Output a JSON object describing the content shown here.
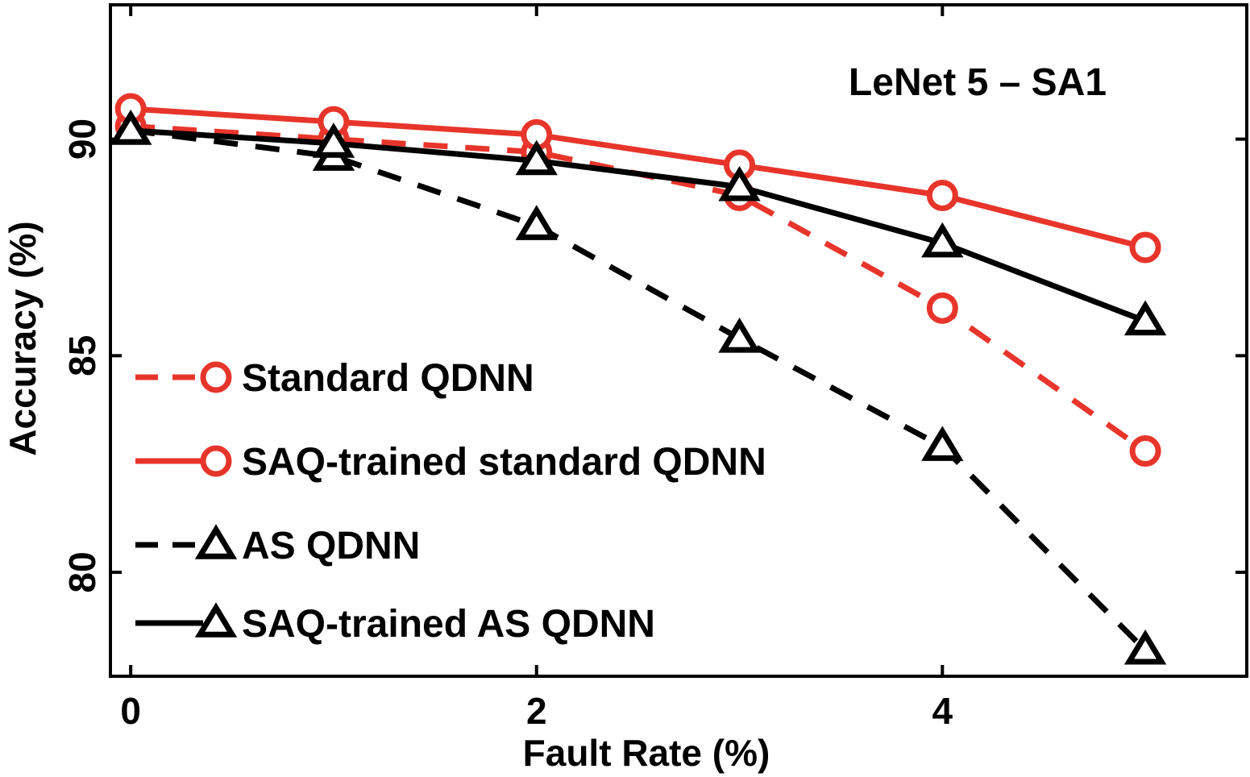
{
  "chart_data": {
    "type": "line",
    "title": "LeNet 5 – SA1",
    "xlabel": "Fault Rate (%)",
    "ylabel": "Accuracy (%)",
    "xlim": [
      -0.1,
      5.5
    ],
    "ylim": [
      77.6,
      93.1
    ],
    "xticks": [
      0,
      2,
      4
    ],
    "yticks": [
      80,
      85,
      90
    ],
    "grid": false,
    "legend_position": "bottom-left",
    "x": [
      0,
      1,
      2,
      3,
      4,
      5
    ],
    "series": [
      {
        "name": "Standard QDNN",
        "values": [
          90.3,
          90.0,
          89.7,
          88.7,
          86.1,
          82.8
        ],
        "color": "#e8352b",
        "dash": "dashed",
        "marker": "circle"
      },
      {
        "name": "SAQ-trained standard QDNN",
        "values": [
          90.7,
          90.4,
          90.1,
          89.4,
          88.7,
          87.5
        ],
        "color": "#e8352b",
        "dash": "solid",
        "marker": "circle"
      },
      {
        "name": "AS QDNN",
        "values": [
          90.2,
          89.6,
          88.0,
          85.4,
          82.9,
          78.2
        ],
        "color": "#000000",
        "dash": "dashed",
        "marker": "triangle"
      },
      {
        "name": "SAQ-trained AS QDNN",
        "values": [
          90.2,
          89.9,
          89.5,
          88.9,
          87.6,
          85.8
        ],
        "color": "#000000",
        "dash": "solid",
        "marker": "triangle"
      }
    ]
  }
}
